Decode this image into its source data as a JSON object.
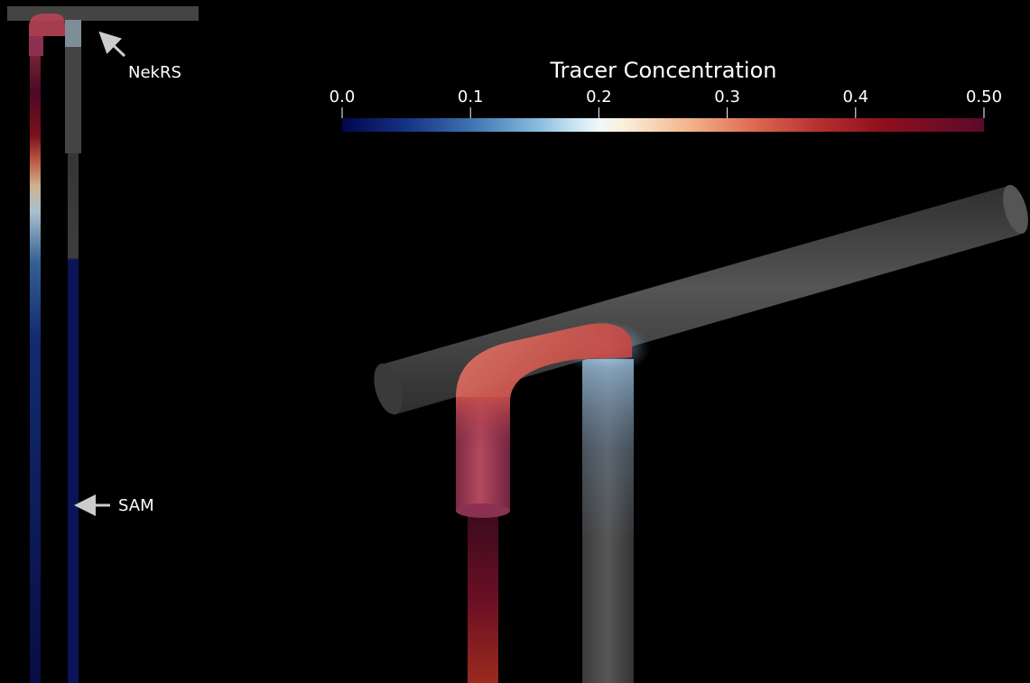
{
  "colorbar": {
    "title": "Tracer Concentration",
    "ticks": [
      "0.0",
      "0.1",
      "0.2",
      "0.3",
      "0.4",
      "0.50"
    ],
    "range": [
      0.0,
      0.5
    ],
    "stops": [
      {
        "value": 0.0,
        "color": "#03064d"
      },
      {
        "value": 0.05,
        "color": "#153382"
      },
      {
        "value": 0.1,
        "color": "#3f72b0"
      },
      {
        "value": 0.15,
        "color": "#84b8dc"
      },
      {
        "value": 0.18,
        "color": "#c6e3f2"
      },
      {
        "value": 0.2,
        "color": "#f0f7fb"
      },
      {
        "value": 0.22,
        "color": "#fbefd8"
      },
      {
        "value": 0.27,
        "color": "#f3b48b"
      },
      {
        "value": 0.32,
        "color": "#de6a52"
      },
      {
        "value": 0.37,
        "color": "#b73131"
      },
      {
        "value": 0.42,
        "color": "#8f0f1d"
      },
      {
        "value": 0.5,
        "color": "#5a0a2c"
      }
    ]
  },
  "annotations": {
    "nekrs": "NekRS",
    "sam": "SAM"
  },
  "colors": {
    "background": "#000000",
    "pipe_gray": "#444444",
    "arrow": "#cccccc"
  }
}
